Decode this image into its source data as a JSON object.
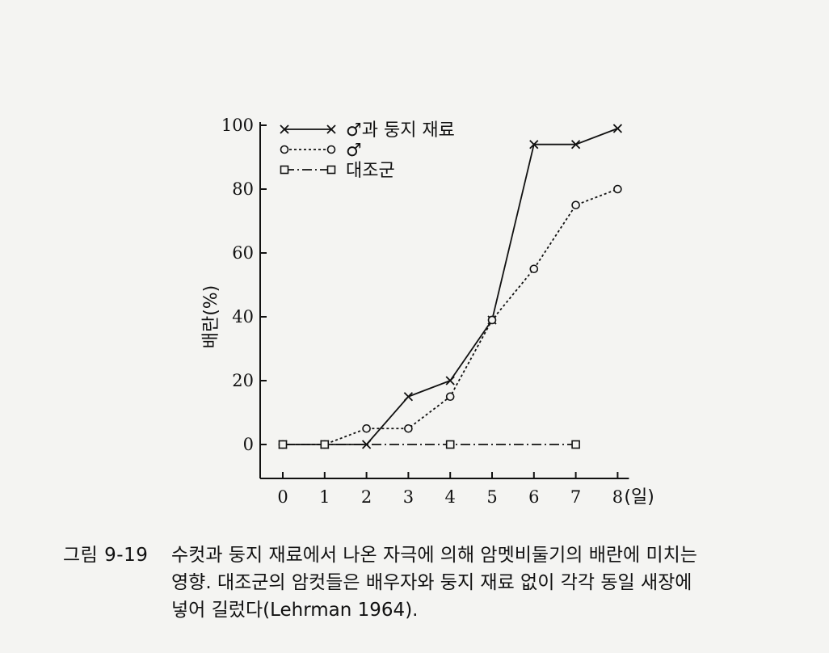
{
  "chart_data": {
    "type": "line",
    "x": [
      0,
      1,
      2,
      3,
      4,
      5,
      6,
      7,
      8
    ],
    "xlim": [
      -0.5,
      8.0
    ],
    "ylim": [
      -10,
      100
    ],
    "xticks": [
      "0",
      "1",
      "2",
      "3",
      "4",
      "5",
      "6",
      "7",
      "8"
    ],
    "xtick_suffix": "(일)",
    "yticks": [
      "0",
      "20",
      "40",
      "60",
      "80",
      "100"
    ],
    "ylabel": "배란(%)",
    "legend_position": "top-left",
    "series": [
      {
        "name": "♂과 둥지 재료",
        "marker": "x",
        "line": "solid",
        "points": [
          [
            0,
            0
          ],
          [
            1,
            0
          ],
          [
            2,
            0
          ],
          [
            3,
            15
          ],
          [
            4,
            20
          ],
          [
            5,
            39
          ],
          [
            6,
            94
          ],
          [
            7,
            94
          ],
          [
            8,
            99
          ]
        ]
      },
      {
        "name": "♂",
        "marker": "o",
        "line": "dotted",
        "points": [
          [
            0,
            0
          ],
          [
            1,
            0
          ],
          [
            2,
            5
          ],
          [
            3,
            5
          ],
          [
            4,
            15
          ],
          [
            5,
            39
          ],
          [
            6,
            55
          ],
          [
            7,
            75
          ],
          [
            8,
            80
          ]
        ]
      },
      {
        "name": "대조군",
        "marker": "square",
        "line": "dashdot",
        "points": [
          [
            0,
            0
          ],
          [
            1,
            0
          ],
          [
            4,
            0
          ],
          [
            7,
            0
          ]
        ]
      }
    ],
    "colors": {
      "ink": "#111111",
      "background": "#f4f4f2"
    }
  },
  "caption": {
    "label": "그림 9-19",
    "lines": [
      "수컷과 둥지 재료에서 나온 자극에 의해 암멧비둘기의 배란에 미치는",
      "영향. 대조군의 암컷들은 배우자와 둥지 재료 없이 각각 동일 새장에",
      "넣어 길렀다(Lehrman 1964)."
    ]
  }
}
